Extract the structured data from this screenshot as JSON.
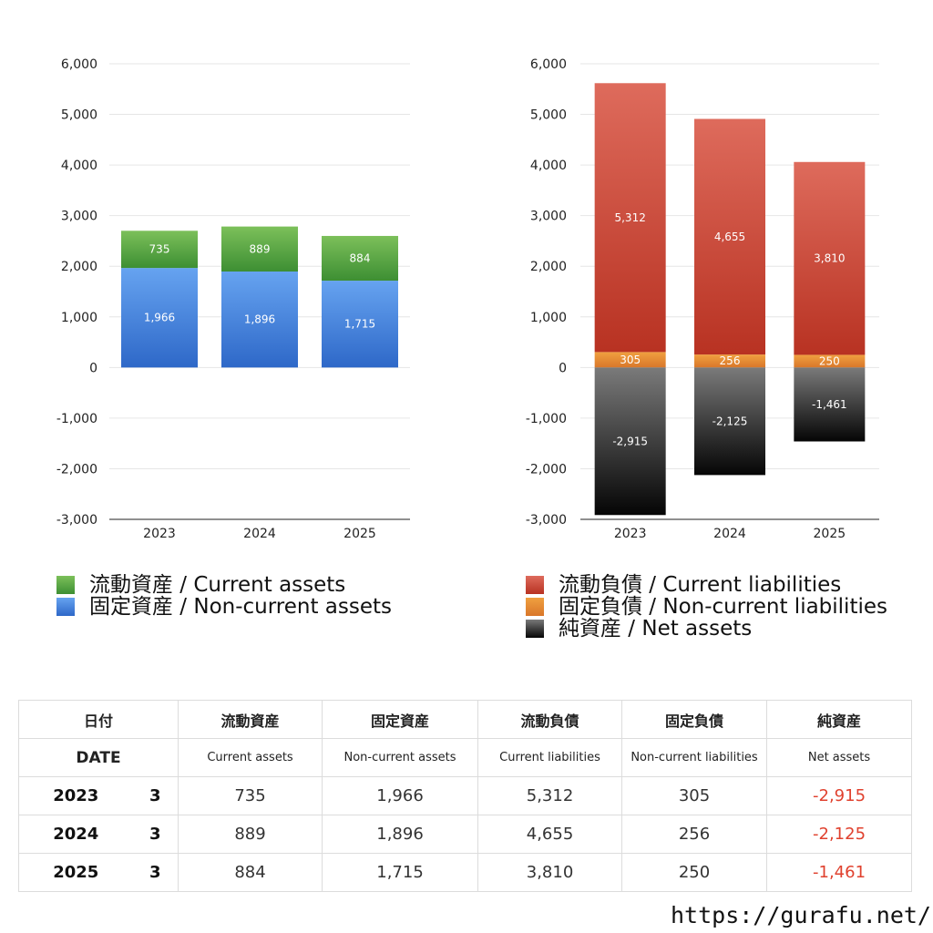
{
  "chart_data": [
    {
      "type": "bar",
      "stacked": true,
      "categories": [
        "2023",
        "2024",
        "2025"
      ],
      "ylim": [
        -3000,
        6000
      ],
      "yticks": [
        6000,
        5000,
        4000,
        3000,
        2000,
        1000,
        0,
        -1000,
        -2000,
        -3000
      ],
      "ytick_labels": [
        "6,000",
        "5,000",
        "4,000",
        "3,000",
        "2,000",
        "1,000",
        "0",
        "-1,000",
        "-2,000",
        "-3,000"
      ],
      "grid": true,
      "series": [
        {
          "name": "固定資産 / Non-current assets",
          "values": [
            1966,
            1896,
            1715
          ],
          "labels": [
            "1,966",
            "1,896",
            "1,715"
          ],
          "color_top": "#66a3f0",
          "color_bottom": "#2e68c8"
        },
        {
          "name": "流動資産 / Current assets",
          "values": [
            735,
            889,
            884
          ],
          "labels": [
            "735",
            "889",
            "884"
          ],
          "color_top": "#7cc05a",
          "color_bottom": "#3d8f33"
        }
      ],
      "legend": {
        "position": "bottom",
        "items": [
          "流動資産 / Current assets",
          "固定資産 / Non-current assets"
        ],
        "colors": [
          "#58a846",
          "#3f7fdc"
        ]
      }
    },
    {
      "type": "bar",
      "stacked": true,
      "categories": [
        "2023",
        "2024",
        "2025"
      ],
      "ylim": [
        -3000,
        6000
      ],
      "yticks": [
        6000,
        5000,
        4000,
        3000,
        2000,
        1000,
        0,
        -1000,
        -2000,
        -3000
      ],
      "ytick_labels": [
        "6,000",
        "5,000",
        "4,000",
        "3,000",
        "2,000",
        "1,000",
        "0",
        "-1,000",
        "-2,000",
        "-3,000"
      ],
      "grid": true,
      "series": [
        {
          "name": "固定負債 / Non-current liabilities",
          "values": [
            305,
            256,
            250
          ],
          "labels": [
            "305",
            "256",
            "250"
          ],
          "color_top": "#f0a040",
          "color_bottom": "#d9772a"
        },
        {
          "name": "流動負債 / Current liabilities",
          "values": [
            5312,
            4655,
            3810
          ],
          "labels": [
            "5,312",
            "4,655",
            "3,810"
          ],
          "color_top": "#de6b5c",
          "color_bottom": "#b83222"
        },
        {
          "name": "純資産 / Net assets",
          "values": [
            -2915,
            -2125,
            -1461
          ],
          "labels": [
            "-2,915",
            "-2,125",
            "-1,461"
          ],
          "color_top": "#7a7a7a",
          "color_bottom": "#050505"
        }
      ],
      "legend": {
        "position": "bottom",
        "items": [
          "流動負債 / Current liabilities",
          "固定負債 / Non-current liabilities",
          "純資産 / Net assets"
        ],
        "colors": [
          "#c9473a",
          "#e58a36",
          "#333333"
        ]
      }
    }
  ],
  "table": {
    "header_jp": [
      "日付",
      "流動資産",
      "固定資産",
      "流動負債",
      "固定負債",
      "純資産"
    ],
    "header_en": [
      "DATE",
      "Current assets",
      "Non-current assets",
      "Current liabilities",
      "Non-current liabilities",
      "Net assets"
    ],
    "rows": [
      {
        "year": "2023",
        "month": "3",
        "ca": "735",
        "nca": "1,966",
        "cl": "5,312",
        "ncl": "305",
        "na": "-2,915"
      },
      {
        "year": "2024",
        "month": "3",
        "ca": "889",
        "nca": "1,896",
        "cl": "4,655",
        "ncl": "256",
        "na": "-2,125"
      },
      {
        "year": "2025",
        "month": "3",
        "ca": "884",
        "nca": "1,715",
        "cl": "3,810",
        "ncl": "250",
        "na": "-1,461"
      }
    ],
    "negative_color": "#e0412e"
  },
  "footer": {
    "url": "https://gurafu.net/"
  }
}
